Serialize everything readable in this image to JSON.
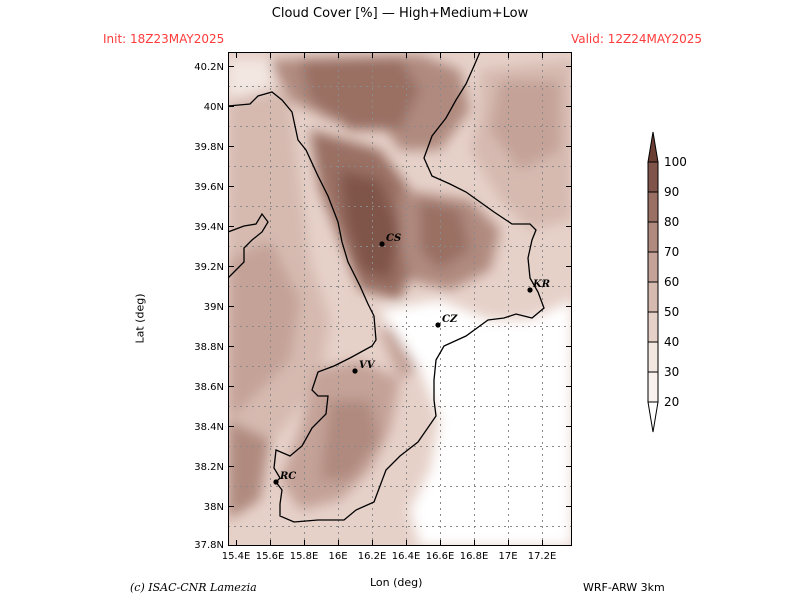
{
  "title": "Cloud Cover [%] — High+Medium+Low",
  "init": "Init: 18Z23MAY2025",
  "valid": "Valid: 12Z24MAY2025",
  "axis": {
    "ylabel": "Lat (deg)",
    "xlabel": "Lon (deg)",
    "lat_ticks": [
      "40.2N",
      "40N",
      "39.8N",
      "39.6N",
      "39.4N",
      "39.2N",
      "39N",
      "38.8N",
      "38.6N",
      "38.4N",
      "38.2N",
      "38N",
      "37.8N"
    ],
    "lon_ticks": [
      "15.4E",
      "15.6E",
      "15.8E",
      "16E",
      "16.2E",
      "16.4E",
      "16.6E",
      "16.8E",
      "17E",
      "17.2E"
    ]
  },
  "cities": [
    {
      "code": "CS"
    },
    {
      "code": "KR"
    },
    {
      "code": "CZ"
    },
    {
      "code": "VV"
    },
    {
      "code": "RC"
    }
  ],
  "colorbar": {
    "levels": [
      "100",
      "90",
      "80",
      "70",
      "60",
      "50",
      "40",
      "30",
      "20"
    ],
    "colors": {
      "c100": "#6b3e34",
      "c90": "#80544a",
      "c80": "#9a6f64",
      "c70": "#b08a7f",
      "c60": "#c4a298",
      "c50": "#d6bab0",
      "c40": "#e6d1c9",
      "c30": "#f3e7e2",
      "c20": "#ffffff"
    }
  },
  "footer": {
    "credit": "(c) ISAC-CNR Lamezia",
    "model": "WRF-ARW 3km"
  }
}
